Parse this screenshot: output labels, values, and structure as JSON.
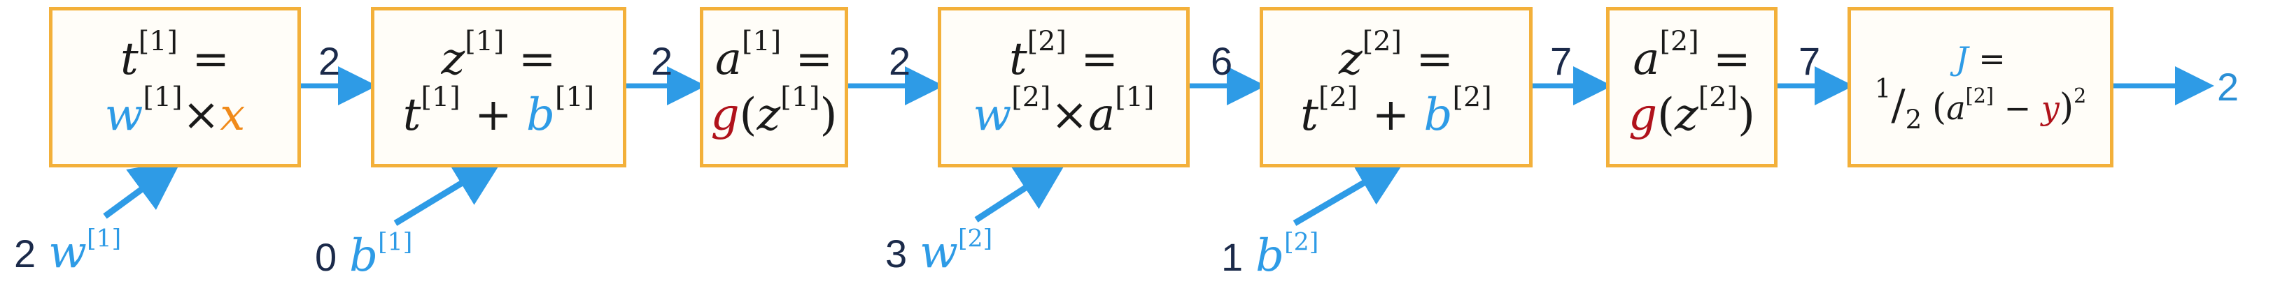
{
  "colors": {
    "box_border": "#f3b03a",
    "arrow": "#2e9be6",
    "param": "#2e9be6",
    "input_x": "#f08a1a",
    "activation": "#b0121b"
  },
  "nodes": [
    {
      "lhs": "t",
      "lhs_sup": "[1]",
      "rhs_a": "w",
      "rhs_a_sup": "[1]",
      "op": "×",
      "rhs_b": "x"
    },
    {
      "lhs": "z",
      "lhs_sup": "[1]",
      "rhs_a": "t",
      "rhs_a_sup": "[1]",
      "op": "+",
      "rhs_b": "b",
      "rhs_b_sup": "[1]"
    },
    {
      "lhs": "a",
      "lhs_sup": "[1]",
      "fn": "g",
      "arg": "z",
      "arg_sup": "[1]"
    },
    {
      "lhs": "t",
      "lhs_sup": "[2]",
      "rhs_a": "w",
      "rhs_a_sup": "[2]",
      "op": "×",
      "rhs_b": "a",
      "rhs_b_sup": "[1]"
    },
    {
      "lhs": "z",
      "lhs_sup": "[2]",
      "rhs_a": "t",
      "rhs_a_sup": "[2]",
      "op": "+",
      "rhs_b": "b",
      "rhs_b_sup": "[2]"
    },
    {
      "lhs": "a",
      "lhs_sup": "[2]",
      "fn": "g",
      "arg": "z",
      "arg_sup": "[2]"
    },
    {
      "lhs": "J",
      "frac_num": "1",
      "frac_den": "2",
      "var_a": "a",
      "var_a_sup": "[2]",
      "minus": "−",
      "var_b": "y",
      "power": "2"
    }
  ],
  "edges": [
    "2",
    "2",
    "2",
    "6",
    "7",
    "7"
  ],
  "output": "2",
  "inputs": [
    {
      "value": "2",
      "symbol": "w",
      "sup": "[1]"
    },
    {
      "value": "0",
      "symbol": "b",
      "sup": "[1]"
    },
    {
      "value": "3",
      "symbol": "w",
      "sup": "[2]"
    },
    {
      "value": "1",
      "symbol": "b",
      "sup": "[2]"
    }
  ]
}
